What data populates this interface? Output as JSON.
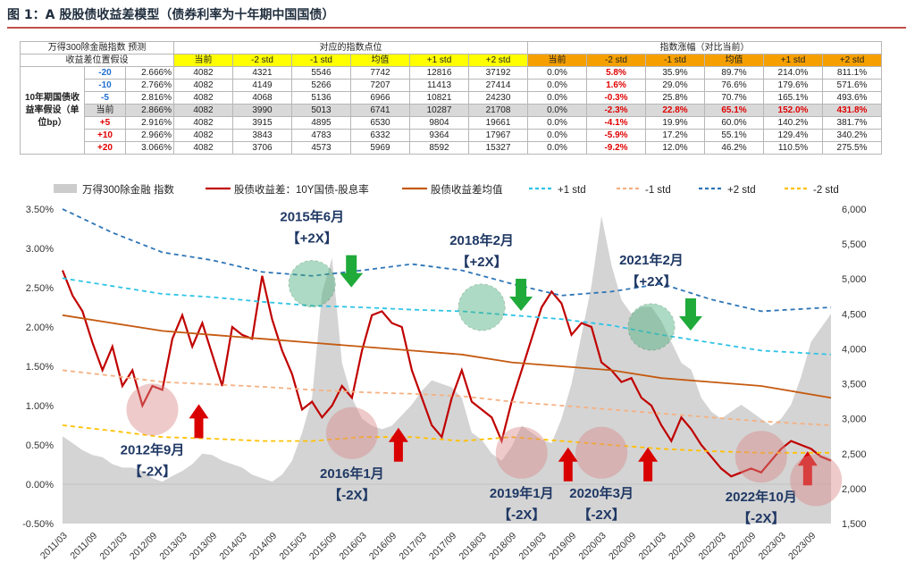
{
  "title": "图 1：A 股股债收益差模型（债券利率为十年期中国国债）",
  "table": {
    "head1": [
      "万得300除金融指数 预测",
      "对应的指数点位",
      "指数涨幅（对比当前）"
    ],
    "head2_label": "收益差位置假设",
    "cols": [
      "当前",
      "-2 std",
      "-1 std",
      "均值",
      "+1 std",
      "+2 std"
    ],
    "row_group_label": "10年期国债收益率假设（单位bp）",
    "rows": [
      {
        "label": "-20",
        "rate": "2.666%",
        "pts": [
          "4082",
          "4321",
          "5546",
          "7742",
          "12816",
          "37192"
        ],
        "pct": [
          "0.0%",
          "5.8%",
          "35.9%",
          "89.7%",
          "214.0%",
          "811.1%"
        ]
      },
      {
        "label": "-10",
        "rate": "2.766%",
        "pts": [
          "4082",
          "4149",
          "5266",
          "7207",
          "11413",
          "27414"
        ],
        "pct": [
          "0.0%",
          "1.6%",
          "29.0%",
          "76.6%",
          "179.6%",
          "571.6%"
        ]
      },
      {
        "label": "-5",
        "rate": "2.816%",
        "pts": [
          "4082",
          "4068",
          "5136",
          "6966",
          "10821",
          "24230"
        ],
        "pct": [
          "0.0%",
          "-0.3%",
          "25.8%",
          "70.7%",
          "165.1%",
          "493.6%"
        ]
      },
      {
        "label": "当前",
        "rate": "2.866%",
        "pts": [
          "4082",
          "3990",
          "5013",
          "6741",
          "10287",
          "21708"
        ],
        "pct": [
          "0.0%",
          "-2.3%",
          "22.8%",
          "65.1%",
          "152.0%",
          "431.8%"
        ]
      },
      {
        "label": "+5",
        "rate": "2.916%",
        "pts": [
          "4082",
          "3915",
          "4895",
          "6530",
          "9804",
          "19661"
        ],
        "pct": [
          "0.0%",
          "-4.1%",
          "19.9%",
          "60.0%",
          "140.2%",
          "381.7%"
        ]
      },
      {
        "label": "+10",
        "rate": "2.966%",
        "pts": [
          "4082",
          "3843",
          "4783",
          "6332",
          "9364",
          "17967"
        ],
        "pct": [
          "0.0%",
          "-5.9%",
          "17.2%",
          "55.1%",
          "129.4%",
          "340.2%"
        ]
      },
      {
        "label": "+20",
        "rate": "3.066%",
        "pts": [
          "4082",
          "3706",
          "4573",
          "5969",
          "8592",
          "15327"
        ],
        "pct": [
          "0.0%",
          "-9.2%",
          "12.0%",
          "46.2%",
          "110.5%",
          "275.5%"
        ]
      }
    ]
  },
  "chart_data": {
    "type": "line",
    "legend": [
      "万得300除金融 指数",
      "股债收益差：10Y国债-股息率",
      "股债收益差均值",
      "+1 std",
      "-1 std",
      "+2 std",
      "-2 std"
    ],
    "legend_position": "top",
    "x_ticks": [
      "2011/03",
      "2011/09",
      "2012/03",
      "2012/09",
      "2013/03",
      "2013/09",
      "2014/03",
      "2014/09",
      "2015/03",
      "2015/09",
      "2016/03",
      "2016/09",
      "2017/03",
      "2017/09",
      "2018/03",
      "2018/09",
      "2019/03",
      "2019/09",
      "2020/03",
      "2020/09",
      "2021/03",
      "2021/09",
      "2022/03",
      "2022/09",
      "2023/03",
      "2023/09"
    ],
    "y_left": {
      "ticks": [
        "-0.50%",
        "0.00%",
        "0.50%",
        "1.00%",
        "1.50%",
        "2.00%",
        "2.50%",
        "3.00%",
        "3.50%"
      ],
      "range": [
        -0.5,
        3.5
      ]
    },
    "y_right": {
      "ticks": [
        "1,500",
        "2,000",
        "2,500",
        "3,000",
        "3,500",
        "4,000",
        "4,500",
        "5,000",
        "5,500",
        "6,000"
      ],
      "range": [
        1500,
        6000
      ]
    },
    "series": [
      {
        "name": "万得300除金融 指数",
        "axis": "right",
        "color": "#cccccc",
        "style": "area",
        "x": [
          0,
          2,
          4,
          6,
          8,
          10,
          12,
          14,
          16,
          18,
          20,
          22,
          24,
          26,
          28,
          30,
          32,
          34,
          36,
          38,
          40,
          42,
          44,
          46,
          48,
          50,
          52,
          54,
          56,
          58,
          60,
          62,
          64,
          66,
          68,
          70,
          72,
          74,
          76,
          78,
          80,
          82,
          84,
          86,
          88,
          90,
          92,
          94,
          96,
          98,
          100,
          102,
          104,
          106,
          108,
          110,
          112,
          114,
          116,
          118,
          120,
          122,
          124,
          126,
          128,
          130,
          132,
          134,
          136,
          138,
          140,
          142,
          144,
          146,
          148,
          150,
          152,
          154
        ],
        "values": [
          2750,
          2650,
          2550,
          2480,
          2450,
          2350,
          2300,
          2300,
          2250,
          2150,
          2100,
          2180,
          2250,
          2350,
          2500,
          2480,
          2400,
          2350,
          2300,
          2200,
          2150,
          2100,
          2200,
          2400,
          2800,
          3300,
          4800,
          5300,
          3800,
          3300,
          3000,
          2900,
          2850,
          2900,
          3050,
          3200,
          3400,
          3550,
          3500,
          3450,
          3300,
          2800,
          2700,
          2500,
          2400,
          2600,
          2900,
          2800,
          2700,
          2650,
          3000,
          3500,
          4200,
          4900,
          5900,
          5200,
          4700,
          4500,
          4600,
          4600,
          4400,
          4100,
          3800,
          3700,
          3300,
          3100,
          3000,
          3100,
          3200,
          3100,
          3000,
          2900,
          3000,
          3200,
          3600,
          4100,
          4300,
          4500
        ]
      },
      {
        "name": "股债收益差：10Y国债-股息率",
        "axis": "left",
        "color": "#c00000",
        "style": "line",
        "x": [
          0,
          2,
          4,
          6,
          8,
          10,
          12,
          14,
          16,
          18,
          20,
          22,
          24,
          26,
          28,
          30,
          32,
          34,
          36,
          38,
          40,
          42,
          44,
          46,
          48,
          50,
          52,
          54,
          56,
          58,
          60,
          62,
          64,
          66,
          68,
          70,
          72,
          74,
          76,
          78,
          80,
          82,
          84,
          86,
          88,
          90,
          92,
          94,
          96,
          98,
          100,
          102,
          104,
          106,
          108,
          110,
          112,
          114,
          116,
          118,
          120,
          122,
          124,
          126,
          128,
          130,
          132,
          134,
          136,
          138,
          140,
          142,
          144,
          146,
          148,
          150,
          152,
          154
        ],
        "values": [
          2.72,
          2.4,
          2.2,
          1.8,
          1.45,
          1.75,
          1.25,
          1.45,
          1.0,
          1.25,
          1.2,
          1.85,
          2.15,
          1.75,
          2.05,
          1.65,
          1.25,
          2.0,
          1.9,
          1.85,
          2.65,
          2.1,
          1.7,
          1.4,
          0.95,
          1.05,
          0.85,
          1.0,
          1.25,
          1.1,
          1.7,
          2.15,
          2.2,
          2.05,
          2.0,
          1.45,
          1.1,
          0.75,
          0.6,
          1.1,
          1.45,
          1.05,
          0.95,
          0.85,
          0.55,
          1.05,
          1.45,
          1.85,
          2.25,
          2.45,
          2.3,
          1.9,
          2.05,
          2.0,
          1.55,
          1.45,
          1.3,
          1.35,
          1.1,
          1.0,
          0.75,
          0.55,
          0.85,
          0.7,
          0.5,
          0.35,
          0.2,
          0.1,
          0.15,
          0.2,
          0.15,
          0.3,
          0.45,
          0.55,
          0.5,
          0.45,
          0.35,
          0.3
        ]
      },
      {
        "name": "股债收益差均值",
        "axis": "left",
        "color": "#c55a11",
        "style": "line",
        "x": [
          0,
          10,
          20,
          30,
          40,
          50,
          60,
          70,
          80,
          90,
          100,
          110,
          120,
          130,
          140,
          154
        ],
        "values": [
          2.15,
          2.05,
          1.95,
          1.9,
          1.85,
          1.8,
          1.75,
          1.7,
          1.65,
          1.55,
          1.5,
          1.45,
          1.35,
          1.3,
          1.25,
          1.1
        ]
      },
      {
        "name": "+1 std",
        "axis": "left",
        "color": "#2ec4e6",
        "style": "dash",
        "x": [
          0,
          10,
          20,
          30,
          40,
          50,
          60,
          70,
          80,
          90,
          100,
          110,
          120,
          130,
          140,
          154
        ],
        "values": [
          2.62,
          2.52,
          2.42,
          2.38,
          2.32,
          2.27,
          2.25,
          2.22,
          2.2,
          2.15,
          2.1,
          2.02,
          1.9,
          1.8,
          1.7,
          1.65
        ]
      },
      {
        "name": "-1 std",
        "axis": "left",
        "color": "#f4b183",
        "style": "dash",
        "x": [
          0,
          10,
          20,
          30,
          40,
          50,
          60,
          70,
          80,
          90,
          100,
          110,
          120,
          130,
          140,
          154
        ],
        "values": [
          1.45,
          1.38,
          1.3,
          1.27,
          1.24,
          1.2,
          1.17,
          1.15,
          1.12,
          1.05,
          1.0,
          0.95,
          0.9,
          0.85,
          0.8,
          0.75
        ]
      },
      {
        "name": "+2 std",
        "axis": "left",
        "color": "#2e75b6",
        "style": "dash",
        "x": [
          0,
          10,
          20,
          30,
          40,
          50,
          60,
          70,
          80,
          90,
          100,
          110,
          120,
          130,
          140,
          154
        ],
        "values": [
          3.5,
          3.2,
          2.95,
          2.85,
          2.7,
          2.65,
          2.72,
          2.8,
          2.72,
          2.55,
          2.4,
          2.45,
          2.55,
          2.35,
          2.2,
          2.25
        ]
      },
      {
        "name": "-2 std",
        "axis": "left",
        "color": "#ffc000",
        "style": "dash",
        "x": [
          0,
          10,
          20,
          30,
          40,
          50,
          60,
          70,
          80,
          90,
          100,
          110,
          120,
          130,
          140,
          154
        ],
        "values": [
          0.75,
          0.68,
          0.6,
          0.58,
          0.55,
          0.55,
          0.6,
          0.6,
          0.55,
          0.6,
          0.55,
          0.5,
          0.45,
          0.42,
          0.4,
          0.4
        ]
      }
    ],
    "annotations": [
      {
        "lines": [
          "2012年9月",
          "【-2X】"
        ],
        "x": 18,
        "y": 0.95,
        "kind": "low",
        "arrow": "up"
      },
      {
        "lines": [
          "2015年6月",
          "【+2X】"
        ],
        "x": 50,
        "y": 2.55,
        "kind": "high",
        "arrow": "down"
      },
      {
        "lines": [
          "2016年1月",
          "【-2X】"
        ],
        "x": 58,
        "y": 0.65,
        "kind": "low",
        "arrow": "up"
      },
      {
        "lines": [
          "2018年2月",
          "【+2X】"
        ],
        "x": 84,
        "y": 2.25,
        "kind": "high",
        "arrow": "down"
      },
      {
        "lines": [
          "2019年1月",
          "【-2X】"
        ],
        "x": 92,
        "y": 0.4,
        "kind": "low",
        "arrow": "up"
      },
      {
        "lines": [
          "2020年3月",
          "【-2X】"
        ],
        "x": 108,
        "y": 0.4,
        "kind": "low",
        "arrow": "up"
      },
      {
        "lines": [
          "2021年2月",
          "【+2X】"
        ],
        "x": 118,
        "y": 2.0,
        "kind": "high",
        "arrow": "down"
      },
      {
        "lines": [
          "2022年10月",
          "【-2X】"
        ],
        "x": 140,
        "y": 0.35,
        "kind": "low",
        "arrow": "up"
      },
      {
        "lines": [],
        "x": 151,
        "y": 0.05,
        "kind": "low",
        "arrow": "none"
      }
    ]
  }
}
